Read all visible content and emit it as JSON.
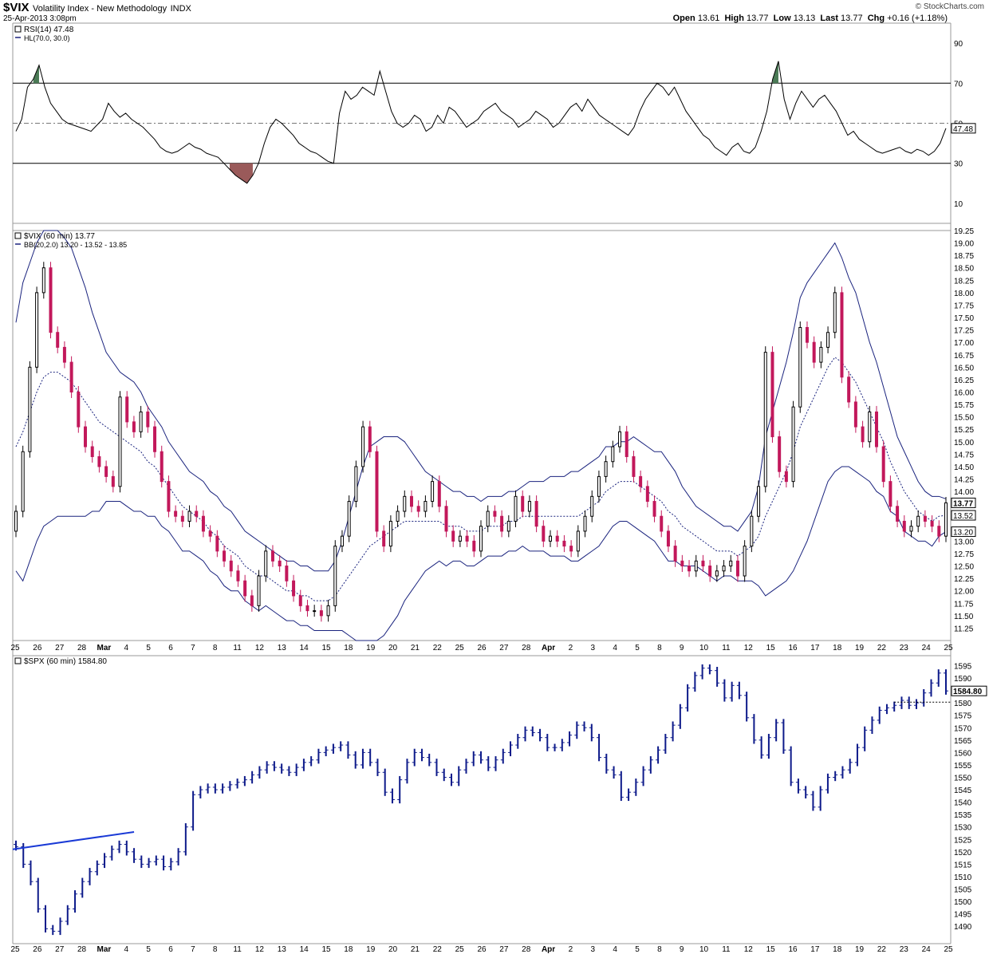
{
  "header": {
    "symbol": "$VIX",
    "name": "Volatility Index - New Methodology",
    "exchange": "INDX",
    "timestamp": "25-Apr-2013 3:08pm",
    "credit": "© StockCharts.com",
    "open_label": "Open",
    "open": "13.61",
    "high_label": "High",
    "high": "13.77",
    "low_label": "Low",
    "low": "13.13",
    "last_label": "Last",
    "last": "13.77",
    "chg_label": "Chg",
    "chg": "+0.16 (+1.18%)"
  },
  "colors": {
    "line": "#000000",
    "band": "#1a237e",
    "up_candle": "#000000",
    "down_candle": "#c2185b",
    "spx_bar": "#0d1a8a",
    "overbought_fill": "#4a7a55",
    "oversold_fill": "#9a5a5a",
    "trendline": "#1a3ad6"
  },
  "x_axis": {
    "labels": [
      "25",
      "26",
      "27",
      "28",
      "Mar",
      "4",
      "5",
      "6",
      "7",
      "8",
      "11",
      "12",
      "13",
      "14",
      "15",
      "18",
      "19",
      "20",
      "21",
      "22",
      "25",
      "26",
      "27",
      "28",
      "Apr",
      "2",
      "3",
      "4",
      "5",
      "8",
      "9",
      "10",
      "11",
      "12",
      "15",
      "16",
      "17",
      "18",
      "19",
      "22",
      "23",
      "24",
      "25"
    ],
    "bold_labels": [
      "Mar",
      "Apr"
    ]
  },
  "chart_data": [
    {
      "type": "line",
      "legend": [
        "RSI(14) 47.48",
        "HL(70.0, 30.0)"
      ],
      "ylim": [
        0,
        100
      ],
      "yticks": [
        10,
        30,
        50,
        70,
        90
      ],
      "levels": [
        70,
        50,
        30
      ],
      "last_value_label": "47.48",
      "series": [
        {
          "values": [
            46,
            52,
            68,
            72,
            79,
            68,
            60,
            56,
            52,
            50,
            49,
            48,
            47,
            46,
            49,
            52,
            60,
            56,
            53,
            55,
            52,
            50,
            48,
            45,
            42,
            38,
            36,
            35,
            36,
            38,
            40,
            38,
            37,
            35,
            34,
            33,
            30,
            27,
            24,
            22,
            20,
            24,
            30,
            40,
            48,
            52,
            50,
            47,
            44,
            40,
            38,
            36,
            35,
            33,
            31,
            30,
            55,
            66,
            62,
            64,
            68,
            66,
            64,
            76,
            66,
            56,
            50,
            48,
            50,
            54,
            52,
            46,
            48,
            54,
            50,
            58,
            56,
            52,
            48,
            50,
            52,
            56,
            58,
            60,
            56,
            54,
            52,
            48,
            50,
            52,
            56,
            54,
            52,
            48,
            50,
            54,
            58,
            60,
            56,
            62,
            58,
            54,
            52,
            50,
            48,
            46,
            44,
            48,
            56,
            62,
            66,
            70,
            68,
            64,
            68,
            62,
            56,
            52,
            48,
            44,
            42,
            38,
            36,
            34,
            38,
            40,
            36,
            35,
            38,
            46,
            56,
            72,
            81,
            62,
            52,
            60,
            66,
            62,
            58,
            62,
            64,
            60,
            56,
            50,
            44,
            46,
            42,
            40,
            38,
            36,
            35,
            36,
            37,
            38,
            36,
            35,
            37,
            36,
            34,
            36,
            40,
            47.48
          ]
        }
      ]
    },
    {
      "type": "candlestick",
      "legend": [
        "$VIX (60 min) 13.77",
        "BB(20,2.0) 13.20 - 13.52 - 13.85"
      ],
      "ylim": [
        11,
        19.25
      ],
      "yticks": [
        11.25,
        11.5,
        11.75,
        12,
        12.25,
        12.5,
        12.75,
        13,
        13.25,
        13.5,
        13.75,
        14,
        14.25,
        14.5,
        14.75,
        15,
        15.25,
        15.5,
        15.75,
        16,
        16.25,
        16.5,
        16.75,
        17,
        17.25,
        17.5,
        17.75,
        18,
        18.25,
        18.5,
        18.75,
        19,
        19.25
      ],
      "tag_labels": [
        "13.77",
        "13.52",
        "13.20"
      ],
      "close": [
        13.6,
        14.8,
        16.5,
        18.0,
        18.5,
        17.2,
        16.9,
        16.6,
        16.0,
        15.3,
        14.9,
        14.7,
        14.5,
        14.3,
        14.1,
        15.9,
        15.4,
        15.2,
        15.6,
        15.3,
        14.8,
        14.2,
        13.6,
        13.5,
        13.4,
        13.6,
        13.5,
        13.2,
        13.1,
        12.8,
        12.6,
        12.4,
        12.2,
        11.9,
        11.7,
        12.3,
        12.8,
        12.6,
        12.5,
        12.2,
        11.9,
        11.7,
        11.6,
        11.6,
        11.5,
        11.7,
        12.9,
        13.1,
        13.8,
        14.5,
        15.3,
        14.8,
        13.2,
        12.9,
        13.4,
        13.6,
        13.9,
        13.7,
        13.6,
        13.8,
        14.2,
        13.7,
        13.2,
        13.0,
        13.1,
        13.0,
        12.8,
        13.3,
        13.6,
        13.5,
        13.2,
        13.4,
        13.9,
        13.6,
        13.8,
        13.3,
        13.0,
        13.1,
        13.0,
        12.9,
        12.8,
        13.2,
        13.5,
        13.9,
        14.3,
        14.6,
        14.9,
        15.2,
        14.7,
        14.3,
        14.1,
        13.8,
        13.5,
        13.2,
        12.9,
        12.6,
        12.5,
        12.4,
        12.6,
        12.5,
        12.3,
        12.4,
        12.5,
        12.6,
        12.3,
        12.9,
        13.5,
        14.1,
        16.8,
        15.1,
        14.4,
        14.2,
        15.7,
        17.3,
        17.0,
        16.6,
        16.9,
        17.2,
        18.0,
        16.3,
        15.8,
        15.3,
        15.0,
        15.6,
        14.9,
        14.2,
        13.7,
        13.4,
        13.2,
        13.3,
        13.5,
        13.4,
        13.3,
        13.1,
        13.77
      ],
      "bb_mid": [
        14.9,
        15.2,
        15.6,
        16.0,
        16.3,
        16.4,
        16.4,
        16.3,
        16.2,
        16.0,
        15.8,
        15.6,
        15.4,
        15.3,
        15.2,
        15.1,
        15.0,
        14.9,
        14.8,
        14.6,
        14.5,
        14.3,
        14.1,
        13.9,
        13.7,
        13.6,
        13.5,
        13.4,
        13.2,
        13.1,
        12.9,
        12.8,
        12.7,
        12.5,
        12.4,
        12.3,
        12.3,
        12.2,
        12.1,
        12.0,
        12.0,
        11.9,
        11.9,
        11.8,
        11.8,
        11.8,
        11.9,
        12.1,
        12.3,
        12.5,
        12.7,
        12.9,
        13.0,
        13.1,
        13.2,
        13.3,
        13.4,
        13.4,
        13.4,
        13.4,
        13.4,
        13.4,
        13.3,
        13.3,
        13.3,
        13.2,
        13.2,
        13.2,
        13.3,
        13.3,
        13.3,
        13.4,
        13.4,
        13.5,
        13.5,
        13.5,
        13.5,
        13.5,
        13.5,
        13.5,
        13.5,
        13.5,
        13.6,
        13.7,
        13.8,
        14.0,
        14.1,
        14.2,
        14.2,
        14.2,
        14.1,
        14.0,
        13.9,
        13.8,
        13.6,
        13.5,
        13.3,
        13.2,
        13.1,
        13.0,
        12.9,
        12.8,
        12.8,
        12.8,
        12.7,
        12.8,
        12.9,
        13.1,
        13.5,
        13.8,
        14.1,
        14.4,
        14.8,
        15.3,
        15.6,
        15.9,
        16.2,
        16.5,
        16.7,
        16.6,
        16.4,
        16.2,
        15.9,
        15.6,
        15.3,
        15.0,
        14.6,
        14.3,
        14.0,
        13.8,
        13.6,
        13.5,
        13.4,
        13.5,
        13.52
      ],
      "bb_width": [
        2.5,
        3.0,
        3.0,
        3.0,
        3.0,
        3.0,
        2.9,
        2.8,
        2.7,
        2.5,
        2.3,
        2.0,
        1.8,
        1.5,
        1.4,
        1.3,
        1.3,
        1.3,
        1.2,
        1.1,
        1.0,
        1.0,
        0.9,
        0.9,
        0.9,
        0.8,
        0.8,
        0.8,
        0.8,
        0.8,
        0.8,
        0.8,
        0.7,
        0.7,
        0.7,
        0.7,
        0.6,
        0.6,
        0.6,
        0.6,
        0.6,
        0.6,
        0.6,
        0.6,
        0.6,
        0.6,
        0.7,
        0.9,
        1.2,
        1.5,
        1.8,
        2.0,
        2.0,
        2.0,
        1.9,
        1.8,
        1.6,
        1.4,
        1.2,
        1.0,
        0.9,
        0.8,
        0.8,
        0.7,
        0.7,
        0.7,
        0.7,
        0.6,
        0.6,
        0.6,
        0.6,
        0.6,
        0.6,
        0.6,
        0.7,
        0.7,
        0.7,
        0.8,
        0.8,
        0.8,
        0.9,
        0.9,
        0.9,
        0.9,
        0.9,
        0.9,
        0.8,
        0.8,
        0.8,
        0.9,
        0.9,
        0.9,
        0.9,
        1.0,
        1.0,
        0.9,
        0.8,
        0.7,
        0.6,
        0.6,
        0.6,
        0.6,
        0.5,
        0.5,
        0.5,
        0.6,
        0.7,
        1.0,
        1.6,
        1.8,
        2.0,
        2.2,
        2.4,
        2.6,
        2.6,
        2.5,
        2.4,
        2.3,
        2.3,
        2.1,
        1.9,
        1.8,
        1.6,
        1.4,
        1.3,
        1.1,
        1.0,
        0.8,
        0.8,
        0.7,
        0.6,
        0.5,
        0.5,
        0.4,
        0.33
      ]
    },
    {
      "type": "bar",
      "legend": [
        "$SPX (60 min) 1584.80"
      ],
      "ylim": [
        1483,
        1599
      ],
      "yticks": [
        1490,
        1495,
        1500,
        1505,
        1510,
        1515,
        1520,
        1525,
        1530,
        1535,
        1540,
        1545,
        1550,
        1555,
        1560,
        1565,
        1570,
        1575,
        1580,
        1585,
        1590,
        1595
      ],
      "last_value_label": "1584.80",
      "trendline": [
        [
          0,
          1521
        ],
        [
          16,
          1528
        ]
      ],
      "close": [
        1522,
        1515,
        1508,
        1497,
        1489,
        1488,
        1492,
        1497,
        1503,
        1508,
        1512,
        1515,
        1518,
        1521,
        1523,
        1520,
        1517,
        1515,
        1516,
        1517,
        1514,
        1516,
        1520,
        1530,
        1543,
        1545,
        1546,
        1545,
        1546,
        1547,
        1548,
        1549,
        1551,
        1553,
        1555,
        1554,
        1553,
        1552,
        1554,
        1556,
        1557,
        1560,
        1561,
        1562,
        1563,
        1559,
        1555,
        1560,
        1556,
        1552,
        1544,
        1541,
        1549,
        1556,
        1560,
        1558,
        1556,
        1552,
        1550,
        1548,
        1553,
        1556,
        1559,
        1557,
        1554,
        1557,
        1560,
        1563,
        1566,
        1569,
        1568,
        1566,
        1562,
        1562,
        1564,
        1567,
        1571,
        1570,
        1566,
        1558,
        1553,
        1551,
        1542,
        1544,
        1548,
        1553,
        1557,
        1561,
        1566,
        1571,
        1578,
        1586,
        1591,
        1594,
        1593,
        1588,
        1582,
        1587,
        1583,
        1574,
        1565,
        1559,
        1566,
        1572,
        1561,
        1548,
        1545,
        1543,
        1538,
        1545,
        1550,
        1551,
        1553,
        1556,
        1562,
        1569,
        1573,
        1577,
        1578,
        1579,
        1581,
        1579,
        1580,
        1584,
        1588,
        1592,
        1584.8
      ]
    }
  ]
}
